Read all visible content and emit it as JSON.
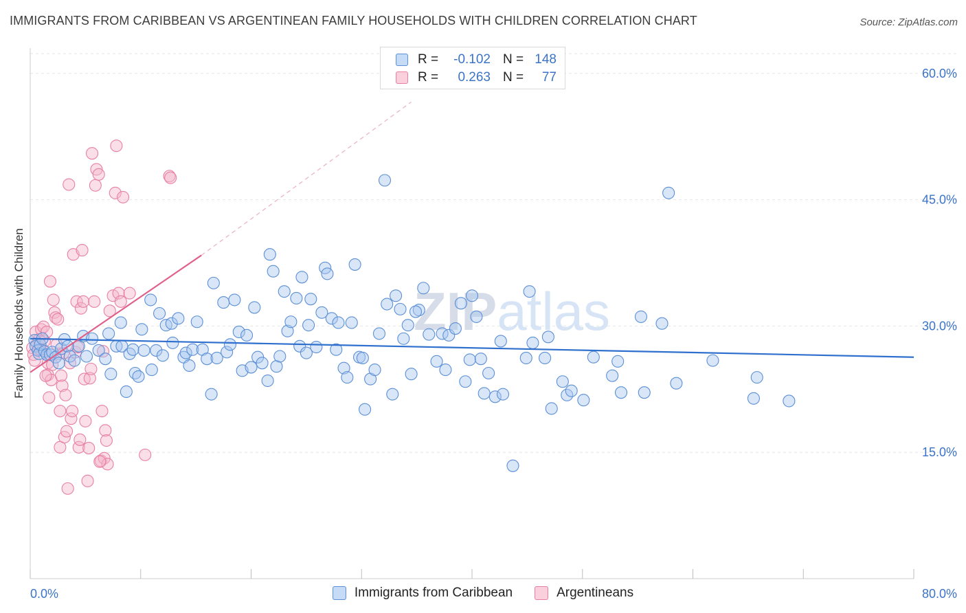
{
  "header": {
    "title": "IMMIGRANTS FROM CARIBBEAN VS ARGENTINEAN FAMILY HOUSEHOLDS WITH CHILDREN CORRELATION CHART",
    "source": "Source: ZipAtlas.com"
  },
  "watermark": "ZIPatlas",
  "legend": {
    "rows": [
      {
        "r_label": "R =",
        "r_value": "-0.102",
        "n_label": "N =",
        "n_value": "148",
        "color": "#a9c8f0"
      },
      {
        "r_label": "R =",
        "r_value": "0.263",
        "n_label": "N =",
        "n_value": "77",
        "color": "#f5b8cb"
      }
    ]
  },
  "colors": {
    "blue_fill": "#a9c8f0",
    "blue_stroke": "#5b8fd6",
    "blue_line": "#2f6fcd",
    "pink_fill": "#f5b8cb",
    "pink_stroke": "#e87fa2",
    "pink_line": "#e0608a",
    "tick_label": "#3a73c8",
    "grid": "#e6e6e6"
  },
  "chart_data": {
    "type": "scatter",
    "title": "IMMIGRANTS FROM CARIBBEAN VS ARGENTINEAN FAMILY HOUSEHOLDS WITH CHILDREN CORRELATION CHART",
    "xlabel": "",
    "ylabel": "Family Households with Children",
    "xlim": [
      0,
      80
    ],
    "ylim": [
      0,
      63
    ],
    "x_tick_labels": [
      "0.0%",
      "80.0%"
    ],
    "y_ticks": [
      15,
      30,
      45,
      60
    ],
    "y_tick_labels": [
      "15.0%",
      "30.0%",
      "45.0%",
      "60.0%"
    ],
    "grid": true,
    "series": [
      {
        "name": "Immigrants from Caribbean",
        "color": "#a9c8f0",
        "trend": {
          "x0": 0,
          "y0": 28.5,
          "x1": 80,
          "y1": 26.3
        },
        "points": [
          [
            0.4,
            28.3
          ],
          [
            0.5,
            27.6
          ],
          [
            0.7,
            27.1
          ],
          [
            0.8,
            26.7
          ],
          [
            0.9,
            27.8
          ],
          [
            1.1,
            28.5
          ],
          [
            1.3,
            27.0
          ],
          [
            1.5,
            26.6
          ],
          [
            1.8,
            26.6
          ],
          [
            2.0,
            26.9
          ],
          [
            2.3,
            26.3
          ],
          [
            2.6,
            25.6
          ],
          [
            2.8,
            27.3
          ],
          [
            3.1,
            28.4
          ],
          [
            3.4,
            27.6
          ],
          [
            3.6,
            26.4
          ],
          [
            4.0,
            25.9
          ],
          [
            4.4,
            27.6
          ],
          [
            4.8,
            28.8
          ],
          [
            5.1,
            26.4
          ],
          [
            5.6,
            28.5
          ],
          [
            6.2,
            27.1
          ],
          [
            6.8,
            26.1
          ],
          [
            7.1,
            29.1
          ],
          [
            7.3,
            24.3
          ],
          [
            7.8,
            27.6
          ],
          [
            8.2,
            30.4
          ],
          [
            8.3,
            27.6
          ],
          [
            8.7,
            22.2
          ],
          [
            9.0,
            26.7
          ],
          [
            9.3,
            27.2
          ],
          [
            9.5,
            24.4
          ],
          [
            9.8,
            24.0
          ],
          [
            10.1,
            29.6
          ],
          [
            10.3,
            27.1
          ],
          [
            10.9,
            33.1
          ],
          [
            11.0,
            24.8
          ],
          [
            11.4,
            27.1
          ],
          [
            11.7,
            31.5
          ],
          [
            12.0,
            26.5
          ],
          [
            12.3,
            30.1
          ],
          [
            12.8,
            30.3
          ],
          [
            12.9,
            28.0
          ],
          [
            13.4,
            30.9
          ],
          [
            13.9,
            26.3
          ],
          [
            14.1,
            26.8
          ],
          [
            14.4,
            25.3
          ],
          [
            14.7,
            27.2
          ],
          [
            15.1,
            30.5
          ],
          [
            15.6,
            27.2
          ],
          [
            16.0,
            26.1
          ],
          [
            16.4,
            21.9
          ],
          [
            16.6,
            35.1
          ],
          [
            16.9,
            26.2
          ],
          [
            17.5,
            32.8
          ],
          [
            17.8,
            26.9
          ],
          [
            18.1,
            27.8
          ],
          [
            18.5,
            33.1
          ],
          [
            18.9,
            29.3
          ],
          [
            19.2,
            24.7
          ],
          [
            19.6,
            28.9
          ],
          [
            20.0,
            25.1
          ],
          [
            20.3,
            32.2
          ],
          [
            20.6,
            26.3
          ],
          [
            21.0,
            25.6
          ],
          [
            21.5,
            23.5
          ],
          [
            21.7,
            38.5
          ],
          [
            22.0,
            36.5
          ],
          [
            22.3,
            25.2
          ],
          [
            22.6,
            26.4
          ],
          [
            23.0,
            34.1
          ],
          [
            23.3,
            29.4
          ],
          [
            23.6,
            30.5
          ],
          [
            24.1,
            33.3
          ],
          [
            24.4,
            27.6
          ],
          [
            24.6,
            35.8
          ],
          [
            25.0,
            26.8
          ],
          [
            25.4,
            33.2
          ],
          [
            25.9,
            27.5
          ],
          [
            26.4,
            31.6
          ],
          [
            26.7,
            36.9
          ],
          [
            26.9,
            36.2
          ],
          [
            27.3,
            30.9
          ],
          [
            27.7,
            27.2
          ],
          [
            27.9,
            30.4
          ],
          [
            28.4,
            25.0
          ],
          [
            28.7,
            23.9
          ],
          [
            29.1,
            30.4
          ],
          [
            29.4,
            37.3
          ],
          [
            29.8,
            26.3
          ],
          [
            30.1,
            26.2
          ],
          [
            30.3,
            20.1
          ],
          [
            30.8,
            23.7
          ],
          [
            31.2,
            24.8
          ],
          [
            31.6,
            29.1
          ],
          [
            32.1,
            47.3
          ],
          [
            32.3,
            32.6
          ],
          [
            32.8,
            21.9
          ],
          [
            33.1,
            33.6
          ],
          [
            33.5,
            32.0
          ],
          [
            33.8,
            28.5
          ],
          [
            34.2,
            30.1
          ],
          [
            34.5,
            24.3
          ],
          [
            35.2,
            31.9
          ],
          [
            35.6,
            34.5
          ],
          [
            36.1,
            29.0
          ],
          [
            36.8,
            25.8
          ],
          [
            37.3,
            29.1
          ],
          [
            37.6,
            24.8
          ],
          [
            37.9,
            28.9
          ],
          [
            38.5,
            29.7
          ],
          [
            39.0,
            32.7
          ],
          [
            39.4,
            23.4
          ],
          [
            39.8,
            26.0
          ],
          [
            40.0,
            33.6
          ],
          [
            40.4,
            31.1
          ],
          [
            40.8,
            26.1
          ],
          [
            41.1,
            22.0
          ],
          [
            41.5,
            24.4
          ],
          [
            42.1,
            21.6
          ],
          [
            42.6,
            28.2
          ],
          [
            42.8,
            21.9
          ],
          [
            44.9,
            26.2
          ],
          [
            45.2,
            34.1
          ],
          [
            45.5,
            28.0
          ],
          [
            46.6,
            26.2
          ],
          [
            46.9,
            28.7
          ],
          [
            47.2,
            20.2
          ],
          [
            48.2,
            23.4
          ],
          [
            48.6,
            21.8
          ],
          [
            49.0,
            22.3
          ],
          [
            50.1,
            21.2
          ],
          [
            51.0,
            26.3
          ],
          [
            52.7,
            24.1
          ],
          [
            53.2,
            25.8
          ],
          [
            53.5,
            22.1
          ],
          [
            55.3,
            31.1
          ],
          [
            55.6,
            22.1
          ],
          [
            57.2,
            30.3
          ],
          [
            57.8,
            45.8
          ],
          [
            58.5,
            23.2
          ],
          [
            61.8,
            25.9
          ],
          [
            65.5,
            21.4
          ],
          [
            65.8,
            23.9
          ],
          [
            68.7,
            21.1
          ],
          [
            43.7,
            13.4
          ],
          [
            25.2,
            30.1
          ],
          [
            34.9,
            31.7
          ]
        ]
      },
      {
        "name": "Argentineans",
        "color": "#f5b8cb",
        "trend": {
          "x0": 0,
          "y0": 24.5,
          "x1": 15.5,
          "y1": 38.4,
          "dash_to": {
            "x": 34.5,
            "y": 56.6
          }
        },
        "points": [
          [
            0.2,
            27.4
          ],
          [
            0.3,
            26.6
          ],
          [
            0.5,
            29.3
          ],
          [
            0.6,
            27.9
          ],
          [
            0.8,
            28.4
          ],
          [
            1.0,
            29.6
          ],
          [
            1.1,
            27.1
          ],
          [
            1.2,
            29.9
          ],
          [
            1.3,
            28.2
          ],
          [
            1.5,
            29.3
          ],
          [
            1.6,
            25.6
          ],
          [
            1.6,
            24.2
          ],
          [
            1.7,
            21.5
          ],
          [
            1.8,
            35.3
          ],
          [
            1.9,
            23.6
          ],
          [
            2.0,
            25.4
          ],
          [
            2.1,
            33.1
          ],
          [
            2.2,
            31.6
          ],
          [
            2.3,
            31.0
          ],
          [
            2.5,
            30.8
          ],
          [
            2.6,
            26.7
          ],
          [
            2.7,
            19.9
          ],
          [
            2.7,
            15.6
          ],
          [
            2.8,
            24.1
          ],
          [
            2.9,
            22.9
          ],
          [
            3.0,
            26.8
          ],
          [
            3.1,
            16.8
          ],
          [
            3.2,
            21.8
          ],
          [
            3.3,
            17.5
          ],
          [
            3.4,
            10.7
          ],
          [
            3.5,
            46.8
          ],
          [
            3.6,
            25.6
          ],
          [
            3.7,
            19.0
          ],
          [
            3.8,
            19.9
          ],
          [
            3.9,
            38.5
          ],
          [
            4.1,
            26.9
          ],
          [
            4.2,
            32.9
          ],
          [
            4.3,
            27.5
          ],
          [
            4.4,
            15.6
          ],
          [
            4.5,
            16.5
          ],
          [
            4.6,
            32.1
          ],
          [
            4.7,
            39.0
          ],
          [
            4.8,
            32.9
          ],
          [
            4.9,
            23.7
          ],
          [
            5.0,
            18.7
          ],
          [
            5.2,
            11.6
          ],
          [
            5.3,
            15.5
          ],
          [
            5.4,
            23.8
          ],
          [
            5.5,
            24.9
          ],
          [
            5.6,
            50.5
          ],
          [
            5.8,
            32.9
          ],
          [
            5.9,
            46.7
          ],
          [
            6.0,
            48.6
          ],
          [
            6.2,
            48.0
          ],
          [
            6.4,
            14.0
          ],
          [
            6.5,
            19.9
          ],
          [
            6.6,
            27.0
          ],
          [
            6.7,
            14.3
          ],
          [
            6.8,
            17.6
          ],
          [
            6.9,
            16.4
          ],
          [
            7.0,
            13.6
          ],
          [
            7.2,
            31.8
          ],
          [
            7.5,
            33.6
          ],
          [
            7.7,
            45.8
          ],
          [
            7.8,
            51.4
          ],
          [
            8.0,
            33.9
          ],
          [
            8.2,
            32.9
          ],
          [
            8.4,
            45.3
          ],
          [
            9.0,
            33.9
          ],
          [
            10.4,
            14.7
          ],
          [
            12.6,
            47.8
          ],
          [
            12.7,
            47.6
          ],
          [
            0.4,
            25.9
          ],
          [
            0.9,
            27.2
          ],
          [
            1.4,
            24.1
          ],
          [
            2.4,
            27.8
          ],
          [
            6.3,
            13.9
          ]
        ]
      }
    ]
  },
  "bottom_legend": {
    "items": [
      {
        "label": "Immigrants from Caribbean",
        "color": "#a9c8f0"
      },
      {
        "label": "Argentineans",
        "color": "#f5b8cb"
      }
    ]
  }
}
